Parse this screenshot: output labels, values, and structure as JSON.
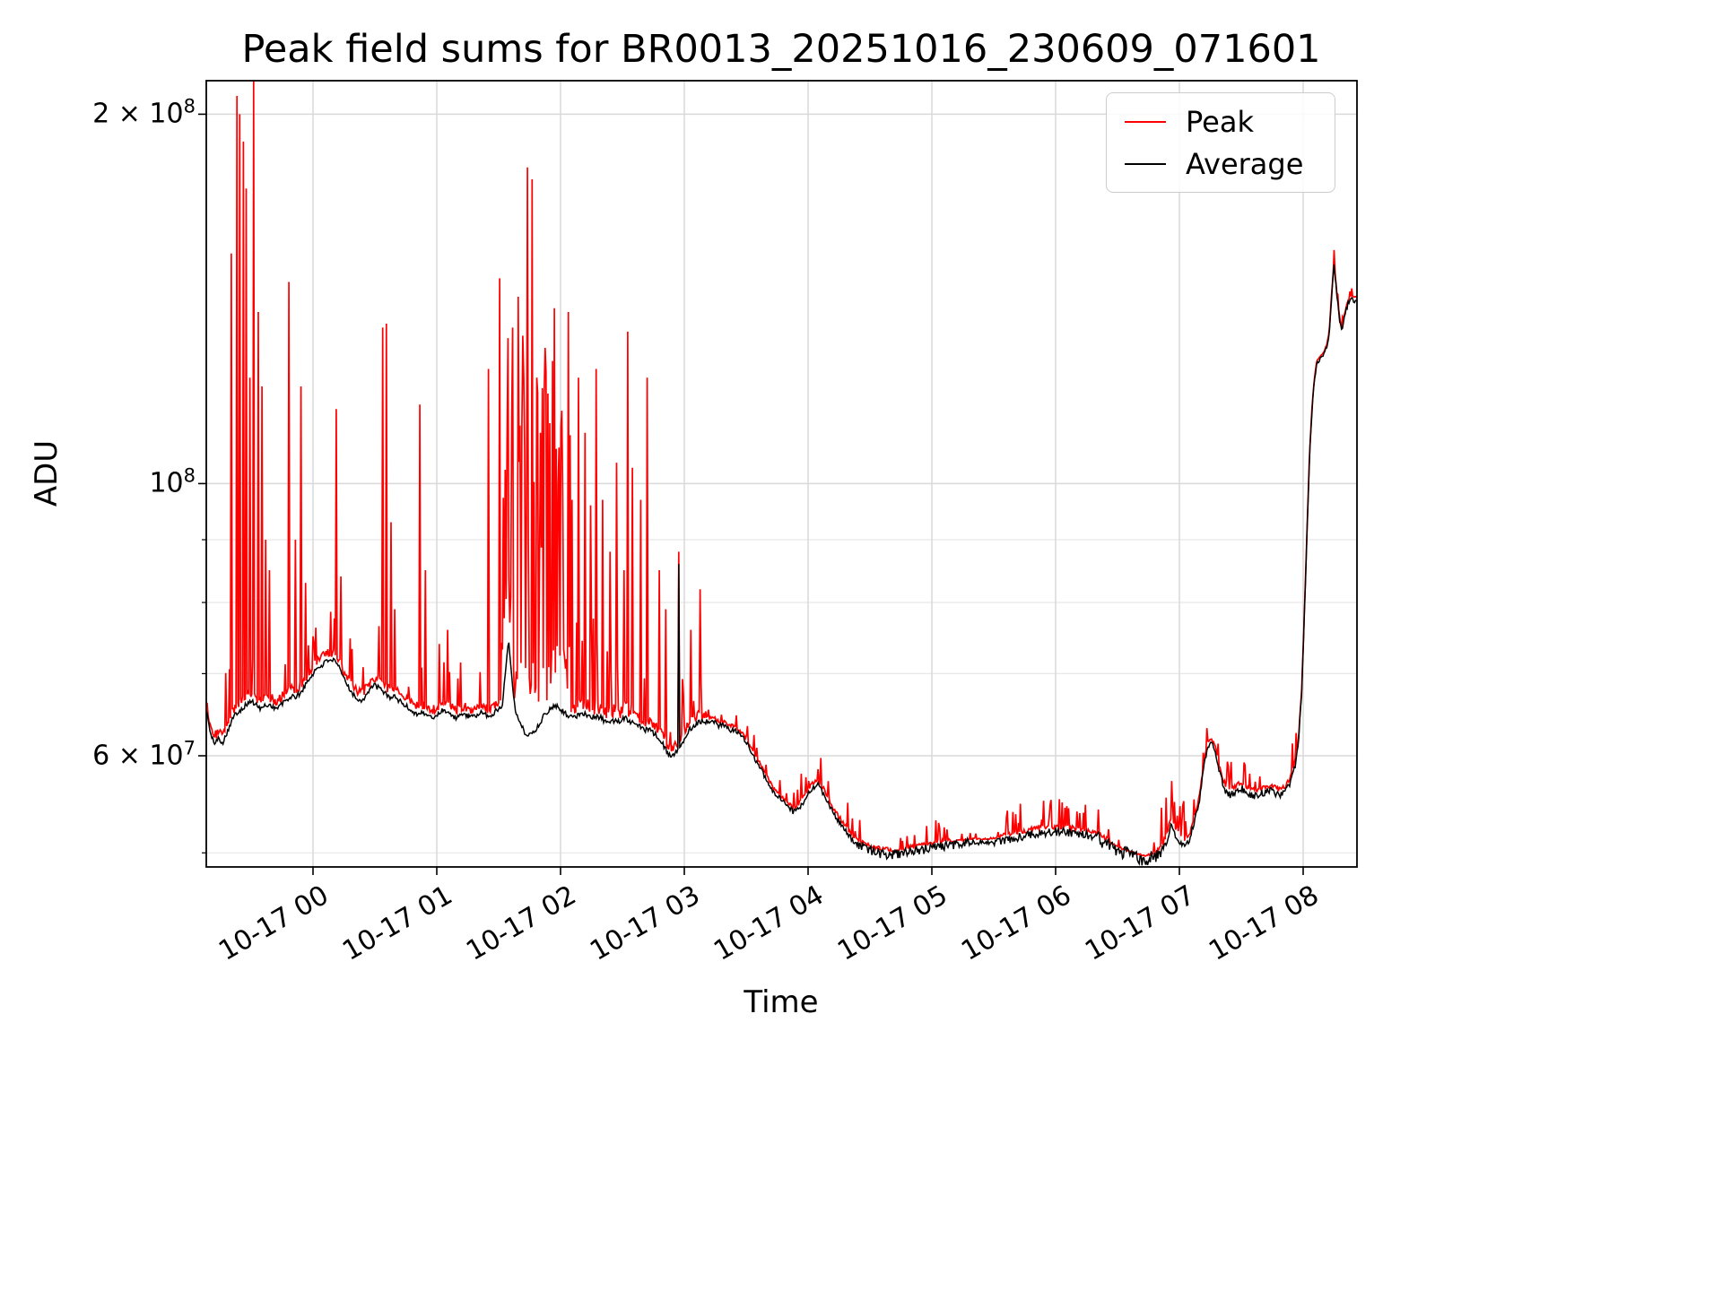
{
  "chart_data": {
    "type": "line",
    "title": "Peak field sums for BR0013_20251016_230609_071601",
    "xlabel": "Time",
    "ylabel": "ADU",
    "yscale": "log",
    "grid": true,
    "legend_position": "upper right",
    "xlim_hours": [
      -0.862,
      8.435
    ],
    "ylim": [
      48700000,
      213000000
    ],
    "x_ticks": [
      {
        "t": 0,
        "label": "10-17 00"
      },
      {
        "t": 1,
        "label": "10-17 01"
      },
      {
        "t": 2,
        "label": "10-17 02"
      },
      {
        "t": 3,
        "label": "10-17 03"
      },
      {
        "t": 4,
        "label": "10-17 04"
      },
      {
        "t": 5,
        "label": "10-17 05"
      },
      {
        "t": 6,
        "label": "10-17 06"
      },
      {
        "t": 7,
        "label": "10-17 07"
      },
      {
        "t": 8,
        "label": "10-17 08"
      }
    ],
    "y_ticks": [
      {
        "v": 200000000,
        "base": "2 × 10",
        "exp": "8"
      },
      {
        "v": 100000000,
        "base": "10",
        "exp": "8"
      },
      {
        "v": 60000000,
        "base": "6 × 10",
        "exp": "7"
      }
    ],
    "y_minor_ticks": [
      50000000,
      70000000,
      80000000,
      90000000
    ],
    "series": [
      {
        "name": "Peak",
        "color": "#ff0000"
      },
      {
        "name": "Average",
        "color": "#000000"
      }
    ],
    "average_baseline_t_v1e7": [
      [
        -0.862,
        6.55
      ],
      [
        -0.84,
        6.35
      ],
      [
        -0.82,
        6.2
      ],
      [
        -0.79,
        6.15
      ],
      [
        -0.76,
        6.2
      ],
      [
        -0.73,
        6.15
      ],
      [
        -0.7,
        6.25
      ],
      [
        -0.66,
        6.4
      ],
      [
        -0.62,
        6.5
      ],
      [
        -0.58,
        6.55
      ],
      [
        -0.54,
        6.6
      ],
      [
        -0.5,
        6.65
      ],
      [
        -0.46,
        6.6
      ],
      [
        -0.42,
        6.55
      ],
      [
        -0.38,
        6.6
      ],
      [
        -0.34,
        6.6
      ],
      [
        -0.3,
        6.55
      ],
      [
        -0.26,
        6.6
      ],
      [
        -0.22,
        6.65
      ],
      [
        -0.18,
        6.7
      ],
      [
        -0.14,
        6.7
      ],
      [
        -0.1,
        6.75
      ],
      [
        -0.06,
        6.85
      ],
      [
        -0.02,
        6.95
      ],
      [
        0.02,
        7.05
      ],
      [
        0.06,
        7.1
      ],
      [
        0.1,
        7.15
      ],
      [
        0.14,
        7.2
      ],
      [
        0.18,
        7.15
      ],
      [
        0.22,
        7.05
      ],
      [
        0.26,
        6.9
      ],
      [
        0.3,
        6.8
      ],
      [
        0.34,
        6.7
      ],
      [
        0.38,
        6.65
      ],
      [
        0.42,
        6.7
      ],
      [
        0.46,
        6.8
      ],
      [
        0.5,
        6.85
      ],
      [
        0.54,
        6.8
      ],
      [
        0.58,
        6.75
      ],
      [
        0.62,
        6.7
      ],
      [
        0.66,
        6.7
      ],
      [
        0.7,
        6.65
      ],
      [
        0.74,
        6.6
      ],
      [
        0.78,
        6.55
      ],
      [
        0.82,
        6.5
      ],
      [
        0.86,
        6.5
      ],
      [
        0.9,
        6.5
      ],
      [
        0.94,
        6.45
      ],
      [
        0.98,
        6.45
      ],
      [
        1.02,
        6.5
      ],
      [
        1.06,
        6.55
      ],
      [
        1.1,
        6.5
      ],
      [
        1.14,
        6.45
      ],
      [
        1.18,
        6.45
      ],
      [
        1.22,
        6.5
      ],
      [
        1.26,
        6.45
      ],
      [
        1.3,
        6.45
      ],
      [
        1.34,
        6.5
      ],
      [
        1.38,
        6.5
      ],
      [
        1.42,
        6.45
      ],
      [
        1.46,
        6.5
      ],
      [
        1.5,
        6.55
      ],
      [
        1.53,
        6.6
      ],
      [
        1.56,
        7.1
      ],
      [
        1.58,
        7.5
      ],
      [
        1.6,
        7.1
      ],
      [
        1.62,
        6.7
      ],
      [
        1.64,
        6.5
      ],
      [
        1.68,
        6.35
      ],
      [
        1.72,
        6.25
      ],
      [
        1.76,
        6.25
      ],
      [
        1.8,
        6.3
      ],
      [
        1.84,
        6.4
      ],
      [
        1.88,
        6.5
      ],
      [
        1.92,
        6.55
      ],
      [
        1.96,
        6.6
      ],
      [
        2.0,
        6.55
      ],
      [
        2.04,
        6.5
      ],
      [
        2.08,
        6.45
      ],
      [
        2.12,
        6.45
      ],
      [
        2.16,
        6.5
      ],
      [
        2.2,
        6.5
      ],
      [
        2.24,
        6.45
      ],
      [
        2.28,
        6.45
      ],
      [
        2.32,
        6.45
      ],
      [
        2.36,
        6.4
      ],
      [
        2.4,
        6.4
      ],
      [
        2.44,
        6.4
      ],
      [
        2.48,
        6.4
      ],
      [
        2.52,
        6.45
      ],
      [
        2.56,
        6.4
      ],
      [
        2.6,
        6.4
      ],
      [
        2.64,
        6.35
      ],
      [
        2.68,
        6.3
      ],
      [
        2.72,
        6.3
      ],
      [
        2.76,
        6.25
      ],
      [
        2.8,
        6.2
      ],
      [
        2.84,
        6.1
      ],
      [
        2.88,
        6.0
      ],
      [
        2.91,
        6.0
      ],
      [
        2.94,
        6.05
      ],
      [
        2.97,
        6.1
      ],
      [
        3.0,
        6.2
      ],
      [
        3.04,
        6.3
      ],
      [
        3.08,
        6.35
      ],
      [
        3.12,
        6.4
      ],
      [
        3.16,
        6.4
      ],
      [
        3.2,
        6.4
      ],
      [
        3.24,
        6.4
      ],
      [
        3.28,
        6.35
      ],
      [
        3.32,
        6.35
      ],
      [
        3.36,
        6.3
      ],
      [
        3.4,
        6.3
      ],
      [
        3.44,
        6.25
      ],
      [
        3.48,
        6.2
      ],
      [
        3.52,
        6.1
      ],
      [
        3.56,
        6.0
      ],
      [
        3.6,
        5.9
      ],
      [
        3.64,
        5.8
      ],
      [
        3.68,
        5.7
      ],
      [
        3.72,
        5.6
      ],
      [
        3.76,
        5.55
      ],
      [
        3.8,
        5.5
      ],
      [
        3.84,
        5.45
      ],
      [
        3.88,
        5.4
      ],
      [
        3.92,
        5.42
      ],
      [
        3.96,
        5.5
      ],
      [
        4.0,
        5.58
      ],
      [
        4.04,
        5.65
      ],
      [
        4.08,
        5.68
      ],
      [
        4.12,
        5.6
      ],
      [
        4.16,
        5.5
      ],
      [
        4.2,
        5.4
      ],
      [
        4.24,
        5.32
      ],
      [
        4.28,
        5.25
      ],
      [
        4.32,
        5.18
      ],
      [
        4.36,
        5.12
      ],
      [
        4.4,
        5.08
      ],
      [
        4.44,
        5.06
      ],
      [
        4.48,
        5.04
      ],
      [
        4.52,
        5.02
      ],
      [
        4.56,
        5.0
      ],
      [
        4.62,
        4.99
      ],
      [
        4.68,
        4.98
      ],
      [
        4.74,
        4.99
      ],
      [
        4.8,
        5.0
      ],
      [
        4.88,
        5.02
      ],
      [
        4.96,
        5.04
      ],
      [
        5.05,
        5.06
      ],
      [
        5.15,
        5.07
      ],
      [
        5.25,
        5.09
      ],
      [
        5.35,
        5.1
      ],
      [
        5.45,
        5.1
      ],
      [
        5.55,
        5.11
      ],
      [
        5.65,
        5.13
      ],
      [
        5.75,
        5.16
      ],
      [
        5.85,
        5.19
      ],
      [
        5.95,
        5.2
      ],
      [
        6.05,
        5.2
      ],
      [
        6.15,
        5.19
      ],
      [
        6.25,
        5.17
      ],
      [
        6.35,
        5.13
      ],
      [
        6.45,
        5.06
      ],
      [
        6.55,
        5.0
      ],
      [
        6.65,
        4.96
      ],
      [
        6.72,
        4.94
      ],
      [
        6.78,
        4.96
      ],
      [
        6.84,
        5.0
      ],
      [
        6.9,
        5.1
      ],
      [
        6.93,
        5.28
      ],
      [
        6.96,
        5.18
      ],
      [
        7.0,
        5.1
      ],
      [
        7.04,
        5.06
      ],
      [
        7.08,
        5.12
      ],
      [
        7.12,
        5.3
      ],
      [
        7.16,
        5.5
      ],
      [
        7.2,
        5.9
      ],
      [
        7.23,
        6.1
      ],
      [
        7.26,
        6.15
      ],
      [
        7.29,
        6.05
      ],
      [
        7.32,
        5.85
      ],
      [
        7.35,
        5.7
      ],
      [
        7.38,
        5.6
      ],
      [
        7.41,
        5.58
      ],
      [
        7.45,
        5.6
      ],
      [
        7.49,
        5.65
      ],
      [
        7.53,
        5.62
      ],
      [
        7.57,
        5.58
      ],
      [
        7.61,
        5.57
      ],
      [
        7.65,
        5.58
      ],
      [
        7.69,
        5.6
      ],
      [
        7.73,
        5.62
      ],
      [
        7.77,
        5.6
      ],
      [
        7.81,
        5.58
      ],
      [
        7.85,
        5.6
      ],
      [
        7.89,
        5.68
      ],
      [
        7.93,
        5.85
      ],
      [
        7.96,
        6.1
      ],
      [
        7.99,
        6.8
      ],
      [
        8.01,
        7.8
      ],
      [
        8.03,
        9.0
      ],
      [
        8.05,
        10.4
      ],
      [
        8.07,
        11.4
      ],
      [
        8.09,
        12.1
      ],
      [
        8.11,
        12.5
      ],
      [
        8.13,
        12.6
      ],
      [
        8.15,
        12.65
      ],
      [
        8.17,
        12.75
      ],
      [
        8.19,
        12.9
      ],
      [
        8.21,
        13.2
      ],
      [
        8.23,
        14.2
      ],
      [
        8.25,
        15.1
      ],
      [
        8.27,
        14.3
      ],
      [
        8.29,
        13.7
      ],
      [
        8.31,
        13.3
      ],
      [
        8.33,
        13.6
      ],
      [
        8.36,
        14.0
      ],
      [
        8.39,
        14.15
      ],
      [
        8.42,
        14.1
      ],
      [
        8.435,
        14.15
      ]
    ],
    "peak_spikes_t_v1e7": [
      [
        -0.66,
        15.4
      ],
      [
        -0.615,
        20.7
      ],
      [
        -0.59,
        20.0
      ],
      [
        -0.565,
        19.0
      ],
      [
        -0.536,
        17.4
      ],
      [
        -0.507,
        12.2
      ],
      [
        -0.478,
        21.3
      ],
      [
        -0.44,
        13.8
      ],
      [
        -0.41,
        12.0
      ],
      [
        -0.385,
        9.0
      ],
      [
        -0.355,
        8.5
      ],
      [
        -0.196,
        14.6
      ],
      [
        -0.14,
        9.0
      ],
      [
        -0.095,
        12.0
      ],
      [
        -0.058,
        8.3
      ],
      [
        0.19,
        11.5
      ],
      [
        0.225,
        8.4
      ],
      [
        0.565,
        13.4
      ],
      [
        0.595,
        13.5
      ],
      [
        0.63,
        9.3
      ],
      [
        0.66,
        7.9
      ],
      [
        0.86,
        11.6
      ],
      [
        0.91,
        8.5
      ],
      [
        1.02,
        7.4
      ],
      [
        1.09,
        7.6
      ],
      [
        1.42,
        12.4
      ],
      [
        1.51,
        14.7
      ],
      [
        1.565,
        10.7
      ],
      [
        1.615,
        13.4
      ],
      [
        1.66,
        14.2
      ],
      [
        1.695,
        13.2
      ],
      [
        1.73,
        18.1
      ],
      [
        1.77,
        17.7
      ],
      [
        1.805,
        12.2
      ],
      [
        1.84,
        11.0
      ],
      [
        1.875,
        12.9
      ],
      [
        1.91,
        11.2
      ],
      [
        1.95,
        13.9
      ],
      [
        1.985,
        10.7
      ],
      [
        2.02,
        9.9
      ],
      [
        2.06,
        13.8
      ],
      [
        2.095,
        9.7
      ],
      [
        2.145,
        12.2
      ],
      [
        2.195,
        11.0
      ],
      [
        2.24,
        9.6
      ],
      [
        2.29,
        12.4
      ],
      [
        2.34,
        9.7
      ],
      [
        2.4,
        8.8
      ],
      [
        2.455,
        10.4
      ],
      [
        2.51,
        8.5
      ],
      [
        2.54,
        13.3
      ],
      [
        2.58,
        10.3
      ],
      [
        2.65,
        9.7
      ],
      [
        2.7,
        12.2
      ],
      [
        2.8,
        8.5
      ],
      [
        2.85,
        7.9
      ],
      [
        2.955,
        8.8
      ],
      [
        3.05,
        7.6
      ],
      [
        3.13,
        8.2
      ],
      [
        8.25,
        15.5
      ]
    ],
    "average_spikes_t_v1e7": [
      [
        2.955,
        8.6
      ]
    ],
    "peak_noise_bands": [
      [
        -0.862,
        1.53,
        0.1,
        0.1
      ],
      [
        1.53,
        2.08,
        0.75,
        0.5
      ],
      [
        2.08,
        2.6,
        0.16,
        0.18
      ],
      [
        2.6,
        3.2,
        0.1,
        0.12
      ],
      [
        3.2,
        3.92,
        0.03,
        0.08
      ],
      [
        3.92,
        4.4,
        0.045,
        0.12
      ],
      [
        4.4,
        5.15,
        0.045,
        0.15
      ],
      [
        5.15,
        5.55,
        0.02,
        0.06
      ],
      [
        5.55,
        6.45,
        0.05,
        0.15
      ],
      [
        6.45,
        6.82,
        0.02,
        0.05
      ],
      [
        6.82,
        7.06,
        0.08,
        0.25
      ],
      [
        7.06,
        7.36,
        0.035,
        0.08
      ],
      [
        7.36,
        7.96,
        0.05,
        0.12
      ],
      [
        7.96,
        8.435,
        0.012,
        0.05
      ]
    ],
    "average_noise_bands": [
      [
        4.4,
        5.3,
        0.009
      ],
      [
        5.5,
        6.3,
        0.008
      ],
      [
        6.3,
        6.85,
        0.013
      ],
      [
        7.3,
        7.95,
        0.007
      ]
    ]
  }
}
